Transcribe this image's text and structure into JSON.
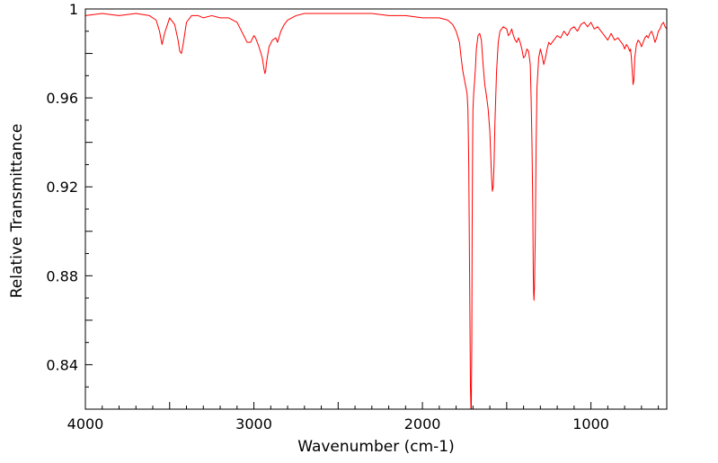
{
  "chart_data": {
    "type": "line",
    "title": "",
    "xlabel": "Wavenumber (cm-1)",
    "ylabel": "Relative Transmittance",
    "xlim": [
      4000,
      550
    ],
    "ylim": [
      0.82,
      1.0
    ],
    "x_reversed": true,
    "grid": false,
    "legend": "none",
    "x_ticks": [
      4000,
      3000,
      2000,
      1000
    ],
    "x_tick_labels": [
      "4000",
      "3000",
      "2000",
      "1000"
    ],
    "y_ticks": [
      0.84,
      0.88,
      0.92,
      0.96,
      1.0
    ],
    "y_tick_labels": [
      "0.84",
      "0.88",
      "0.92",
      "0.96",
      "1"
    ],
    "line_color": "#ff0000",
    "series": [
      {
        "x": [
          4000,
          3900,
          3800,
          3700,
          3620,
          3580,
          3560,
          3545,
          3530,
          3500,
          3470,
          3450,
          3440,
          3430,
          3420,
          3400,
          3370,
          3330,
          3300,
          3250,
          3200,
          3150,
          3100,
          3080,
          3060,
          3040,
          3020,
          3000,
          2990,
          2970,
          2950,
          2940,
          2935,
          2930,
          2925,
          2910,
          2890,
          2870,
          2860,
          2840,
          2820,
          2800,
          2750,
          2700,
          2600,
          2500,
          2400,
          2300,
          2200,
          2100,
          2000,
          1900,
          1850,
          1820,
          1800,
          1780,
          1770,
          1760,
          1750,
          1745,
          1740,
          1735,
          1730,
          1725,
          1720,
          1715,
          1712,
          1710,
          1707,
          1705,
          1702,
          1700,
          1695,
          1690,
          1685,
          1680,
          1670,
          1660,
          1650,
          1640,
          1630,
          1620,
          1610,
          1600,
          1595,
          1590,
          1585,
          1580,
          1575,
          1570,
          1560,
          1550,
          1540,
          1520,
          1500,
          1490,
          1480,
          1470,
          1460,
          1450,
          1440,
          1430,
          1420,
          1410,
          1400,
          1390,
          1380,
          1370,
          1360,
          1355,
          1350,
          1345,
          1342,
          1340,
          1338,
          1335,
          1330,
          1325,
          1320,
          1310,
          1300,
          1290,
          1280,
          1270,
          1260,
          1250,
          1240,
          1220,
          1200,
          1180,
          1160,
          1140,
          1120,
          1100,
          1080,
          1060,
          1040,
          1020,
          1000,
          980,
          960,
          940,
          920,
          900,
          880,
          860,
          840,
          820,
          810,
          800,
          790,
          780,
          770,
          765,
          760,
          755,
          750,
          745,
          740,
          730,
          720,
          710,
          700,
          690,
          680,
          670,
          660,
          650,
          640,
          630,
          620,
          610,
          600,
          590,
          580,
          570,
          560,
          550
        ],
        "y": [
          0.997,
          0.998,
          0.997,
          0.998,
          0.997,
          0.995,
          0.99,
          0.984,
          0.989,
          0.996,
          0.993,
          0.986,
          0.981,
          0.98,
          0.984,
          0.994,
          0.997,
          0.997,
          0.996,
          0.997,
          0.996,
          0.996,
          0.994,
          0.991,
          0.988,
          0.985,
          0.985,
          0.988,
          0.987,
          0.983,
          0.978,
          0.973,
          0.971,
          0.972,
          0.976,
          0.983,
          0.986,
          0.987,
          0.985,
          0.99,
          0.993,
          0.995,
          0.997,
          0.998,
          0.998,
          0.998,
          0.998,
          0.998,
          0.997,
          0.997,
          0.996,
          0.996,
          0.995,
          0.993,
          0.99,
          0.985,
          0.978,
          0.972,
          0.968,
          0.966,
          0.964,
          0.962,
          0.955,
          0.93,
          0.88,
          0.83,
          0.82,
          0.82,
          0.85,
          0.9,
          0.94,
          0.955,
          0.963,
          0.968,
          0.974,
          0.982,
          0.988,
          0.989,
          0.986,
          0.975,
          0.966,
          0.961,
          0.955,
          0.945,
          0.935,
          0.925,
          0.918,
          0.92,
          0.93,
          0.948,
          0.972,
          0.985,
          0.99,
          0.992,
          0.991,
          0.988,
          0.989,
          0.991,
          0.988,
          0.986,
          0.985,
          0.987,
          0.985,
          0.982,
          0.978,
          0.979,
          0.982,
          0.981,
          0.975,
          0.96,
          0.94,
          0.91,
          0.88,
          0.872,
          0.869,
          0.875,
          0.9,
          0.94,
          0.965,
          0.978,
          0.982,
          0.979,
          0.975,
          0.978,
          0.982,
          0.985,
          0.984,
          0.986,
          0.988,
          0.987,
          0.99,
          0.988,
          0.991,
          0.992,
          0.99,
          0.993,
          0.994,
          0.992,
          0.994,
          0.991,
          0.992,
          0.99,
          0.988,
          0.986,
          0.989,
          0.986,
          0.987,
          0.985,
          0.984,
          0.982,
          0.984,
          0.983,
          0.981,
          0.982,
          0.978,
          0.972,
          0.966,
          0.968,
          0.978,
          0.984,
          0.986,
          0.985,
          0.983,
          0.985,
          0.987,
          0.988,
          0.987,
          0.989,
          0.99,
          0.988,
          0.985,
          0.987,
          0.99,
          0.991,
          0.993,
          0.994,
          0.992,
          0.991
        ]
      }
    ]
  }
}
